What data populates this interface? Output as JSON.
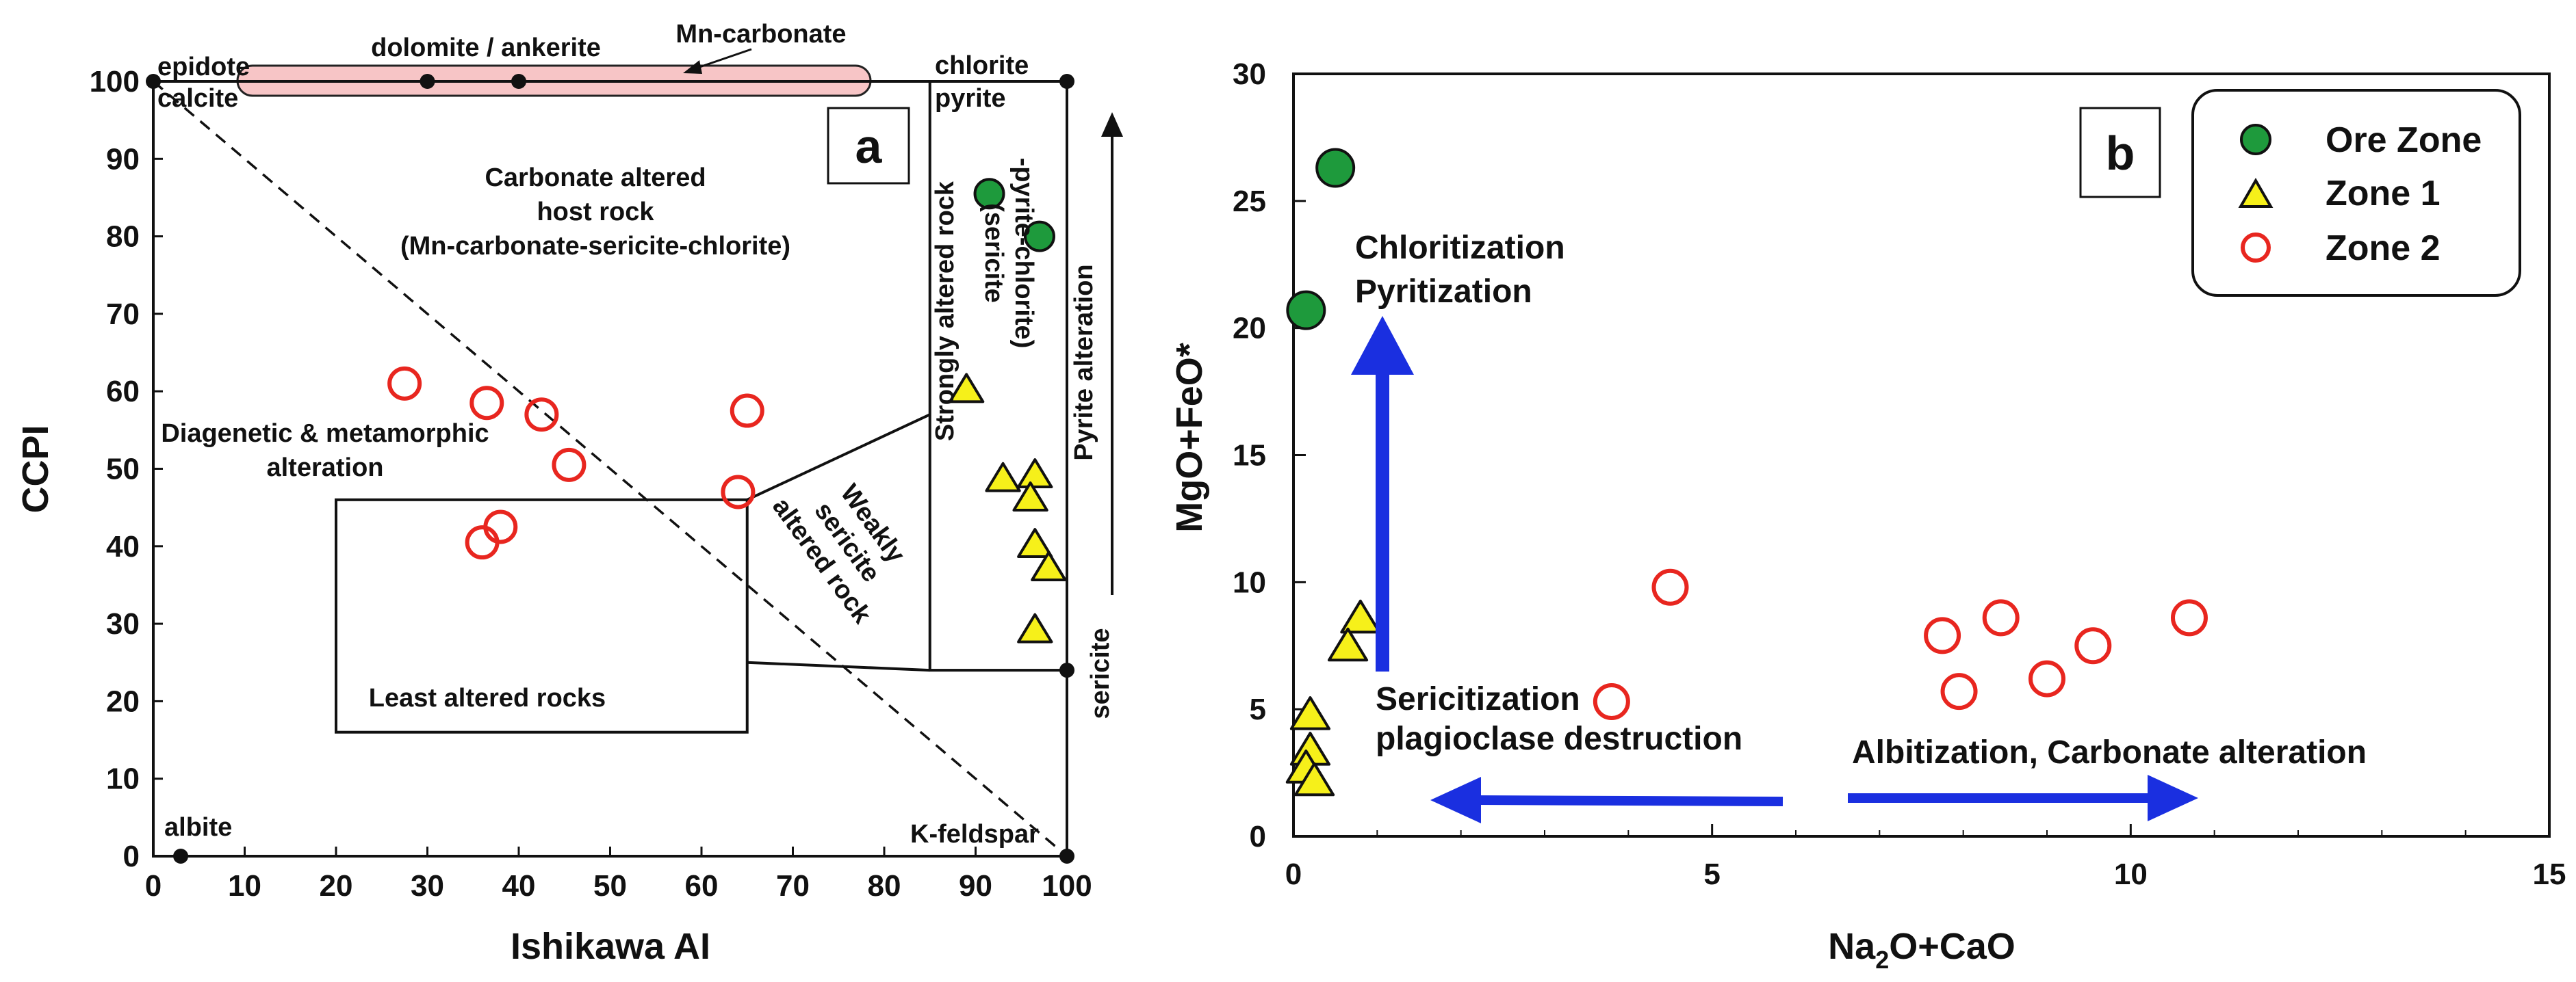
{
  "chart_data": [
    {
      "panel": "a",
      "type": "scatter",
      "xlabel": "Ishikawa AI",
      "ylabel": "CCPI",
      "xlim": [
        0,
        100
      ],
      "ylim": [
        0,
        100
      ],
      "xticks": [
        0,
        10,
        20,
        30,
        40,
        50,
        60,
        70,
        80,
        90,
        100
      ],
      "yticks": [
        0,
        10,
        20,
        30,
        40,
        50,
        60,
        70,
        80,
        90,
        100
      ],
      "series": [
        {
          "name": "Ore Zone",
          "marker": "circle-filled",
          "points": [
            [
              91.5,
              85.5
            ],
            [
              97,
              80
            ]
          ]
        },
        {
          "name": "Zone 1",
          "marker": "triangle",
          "points": [
            [
              89,
              60
            ],
            [
              93,
              48.5
            ],
            [
              96.5,
              49
            ],
            [
              96,
              46
            ],
            [
              96.5,
              40
            ],
            [
              98,
              37
            ],
            [
              96.5,
              29
            ]
          ]
        },
        {
          "name": "Zone 2",
          "marker": "circle-open",
          "points": [
            [
              27.5,
              61
            ],
            [
              36.5,
              58.5
            ],
            [
              42.5,
              57
            ],
            [
              65,
              57.5
            ],
            [
              45.5,
              50.5
            ],
            [
              64,
              47
            ],
            [
              38,
              42.5
            ],
            [
              36,
              40.5
            ]
          ]
        }
      ],
      "reference_points": [
        {
          "label": "epidote",
          "x": 0,
          "y": 100
        },
        {
          "label": "calcite",
          "x": 0,
          "y": 100
        },
        {
          "label": "dolomite / ankerite",
          "x": 30,
          "y": 100
        },
        {
          "label": "dolomite / ankerite",
          "x": 40,
          "y": 100
        },
        {
          "label": "chlorite",
          "x": 100,
          "y": 100
        },
        {
          "label": "pyrite",
          "x": 100,
          "y": 100
        },
        {
          "label": "sericite",
          "x": 100,
          "y": 24
        },
        {
          "label": "albite",
          "x": 3,
          "y": 0
        },
        {
          "label": "K-feldspar",
          "x": 100,
          "y": 0
        }
      ],
      "labels": {
        "epidote": "epidote",
        "calcite": "calcite",
        "dolomite": "dolomite / ankerite",
        "mn_carbonate": "Mn-carbonate",
        "chlorite": "chlorite",
        "pyrite": "pyrite",
        "carbonate_line1": "Carbonate altered",
        "carbonate_line2": "host rock",
        "carbonate_line3": "(Mn-carbonate-sericite-chlorite)",
        "strong_line1": "Strongly altered rock",
        "strong_line2": "(sericite",
        "strong_line3": "-pyrite-chlorite)",
        "pyrite_alteration": "Pyrite alteration",
        "diagenetic_line1": "Diagenetic & metamorphic",
        "diagenetic_line2": "alteration",
        "weakly_line1": "Weakly",
        "weakly_line2": "sericite",
        "weakly_line3": "altered rock",
        "least": "Least altered rocks",
        "sericite": "sericite",
        "albite": "albite",
        "kfeldspar": "K-feldspar",
        "panel_letter": "a"
      }
    },
    {
      "panel": "b",
      "type": "scatter",
      "xlabel_main": "Na",
      "xlabel_sub1": "2",
      "xlabel_rest": "O+CaO",
      "ylabel": "MgO+FeO*",
      "xlim": [
        0,
        15
      ],
      "ylim": [
        0,
        30
      ],
      "xticks": [
        0,
        5,
        10,
        15
      ],
      "yticks": [
        0,
        5,
        10,
        15,
        20,
        25,
        30
      ],
      "legend_position": "top-right",
      "legend": [
        "Ore Zone",
        "Zone 1",
        "Zone 2"
      ],
      "series": [
        {
          "name": "Ore Zone",
          "marker": "circle-filled",
          "points": [
            [
              0.5,
              26.3
            ],
            [
              0.15,
              20.7
            ]
          ]
        },
        {
          "name": "Zone 1",
          "marker": "triangle",
          "points": [
            [
              0.8,
              8.5
            ],
            [
              0.65,
              7.4
            ],
            [
              0.2,
              4.7
            ],
            [
              0.2,
              3.3
            ],
            [
              0.15,
              2.6
            ],
            [
              0.25,
              2.1
            ]
          ]
        },
        {
          "name": "Zone 2",
          "marker": "circle-open",
          "points": [
            [
              4.5,
              9.8
            ],
            [
              8.45,
              8.6
            ],
            [
              10.7,
              8.6
            ],
            [
              7.75,
              7.9
            ],
            [
              9.55,
              7.5
            ],
            [
              9.0,
              6.2
            ],
            [
              7.95,
              5.7
            ],
            [
              3.8,
              5.3
            ]
          ]
        }
      ],
      "annotations": {
        "chloritization": "Chloritization",
        "pyritization": "Pyritization",
        "sericitization": "Sericitization",
        "plagioclase": "plagioclase destruction",
        "albitization": "Albitization, Carbonate alteration",
        "panel_letter": "b"
      }
    }
  ],
  "colors": {
    "ore_zone": "#1e9a3c",
    "zone1": "#f6f01a",
    "zone2": "#e8261f",
    "arrow_blue": "#1a2fe0",
    "mn_band": "#f7c5c6"
  }
}
